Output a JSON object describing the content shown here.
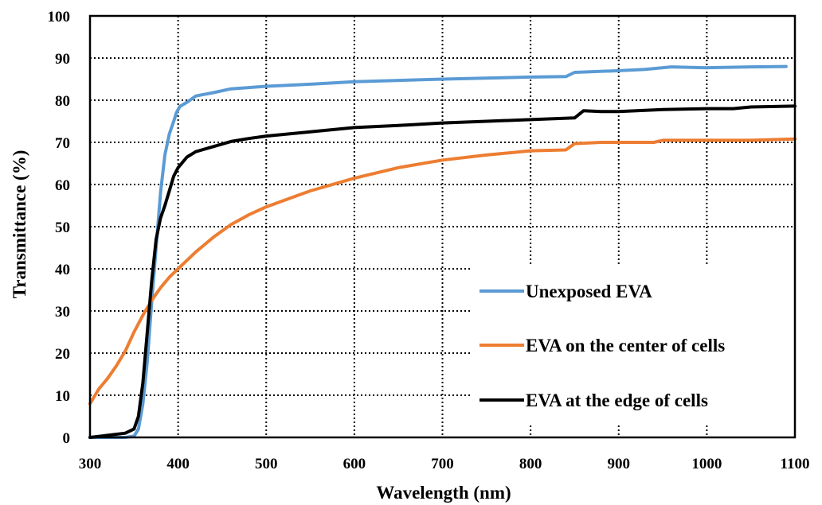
{
  "chart_data": {
    "type": "line",
    "title": "",
    "xlabel": "Wavelength (nm)",
    "ylabel": "Transmittance (%)",
    "xlim": [
      300,
      1100
    ],
    "ylim": [
      0,
      100
    ],
    "x_ticks": [
      300,
      400,
      500,
      600,
      700,
      800,
      900,
      1000,
      1100
    ],
    "y_ticks": [
      0,
      10,
      20,
      30,
      40,
      50,
      60,
      70,
      80,
      90,
      100
    ],
    "grid": "dotted",
    "legend_position": "bottom-right",
    "series": [
      {
        "name": "Unexposed EVA",
        "color": "#5B9BD5",
        "points": [
          [
            300,
            0
          ],
          [
            340,
            0
          ],
          [
            350,
            0.3
          ],
          [
            355,
            2
          ],
          [
            360,
            8
          ],
          [
            365,
            18
          ],
          [
            370,
            32
          ],
          [
            375,
            45
          ],
          [
            380,
            58
          ],
          [
            385,
            67
          ],
          [
            390,
            72
          ],
          [
            395,
            75
          ],
          [
            398,
            77
          ],
          [
            402,
            78.5
          ],
          [
            410,
            79.5
          ],
          [
            420,
            81
          ],
          [
            440,
            81.8
          ],
          [
            460,
            82.7
          ],
          [
            480,
            83
          ],
          [
            500,
            83.3
          ],
          [
            550,
            83.8
          ],
          [
            600,
            84.4
          ],
          [
            700,
            85
          ],
          [
            800,
            85.5
          ],
          [
            840,
            85.6
          ],
          [
            850,
            86.6
          ],
          [
            900,
            87
          ],
          [
            930,
            87.3
          ],
          [
            960,
            87.9
          ],
          [
            1000,
            87.7
          ],
          [
            1050,
            87.9
          ],
          [
            1090,
            88
          ]
        ]
      },
      {
        "name": "EVA on the center of cells",
        "color": "#ED7D31",
        "points": [
          [
            300,
            8
          ],
          [
            310,
            11.5
          ],
          [
            320,
            14
          ],
          [
            330,
            17
          ],
          [
            340,
            20.5
          ],
          [
            350,
            25
          ],
          [
            360,
            29
          ],
          [
            370,
            32.5
          ],
          [
            380,
            35.5
          ],
          [
            390,
            38
          ],
          [
            400,
            40
          ],
          [
            420,
            44
          ],
          [
            440,
            47.5
          ],
          [
            460,
            50.5
          ],
          [
            480,
            52.8
          ],
          [
            500,
            54.7
          ],
          [
            550,
            58.5
          ],
          [
            600,
            61.5
          ],
          [
            650,
            64
          ],
          [
            700,
            65.8
          ],
          [
            750,
            67
          ],
          [
            800,
            68
          ],
          [
            840,
            68.2
          ],
          [
            850,
            69.7
          ],
          [
            880,
            70
          ],
          [
            900,
            70
          ],
          [
            940,
            70
          ],
          [
            950,
            70.5
          ],
          [
            1000,
            70.5
          ],
          [
            1050,
            70.5
          ],
          [
            1100,
            70.8
          ]
        ]
      },
      {
        "name": "EVA at the edge of cells",
        "color": "#000000",
        "points": [
          [
            300,
            0
          ],
          [
            320,
            0.5
          ],
          [
            340,
            1
          ],
          [
            350,
            2
          ],
          [
            355,
            5
          ],
          [
            360,
            13
          ],
          [
            365,
            25
          ],
          [
            370,
            37
          ],
          [
            375,
            47
          ],
          [
            380,
            52
          ],
          [
            385,
            55
          ],
          [
            390,
            58.5
          ],
          [
            395,
            62
          ],
          [
            400,
            64
          ],
          [
            410,
            66.5
          ],
          [
            420,
            67.8
          ],
          [
            440,
            69
          ],
          [
            460,
            70.2
          ],
          [
            480,
            70.9
          ],
          [
            500,
            71.5
          ],
          [
            550,
            72.5
          ],
          [
            600,
            73.5
          ],
          [
            650,
            74
          ],
          [
            700,
            74.6
          ],
          [
            750,
            75
          ],
          [
            800,
            75.4
          ],
          [
            850,
            75.8
          ],
          [
            860,
            77.5
          ],
          [
            880,
            77.3
          ],
          [
            900,
            77.3
          ],
          [
            950,
            77.8
          ],
          [
            1000,
            78
          ],
          [
            1030,
            78
          ],
          [
            1050,
            78.4
          ],
          [
            1100,
            78.6
          ]
        ]
      }
    ]
  }
}
